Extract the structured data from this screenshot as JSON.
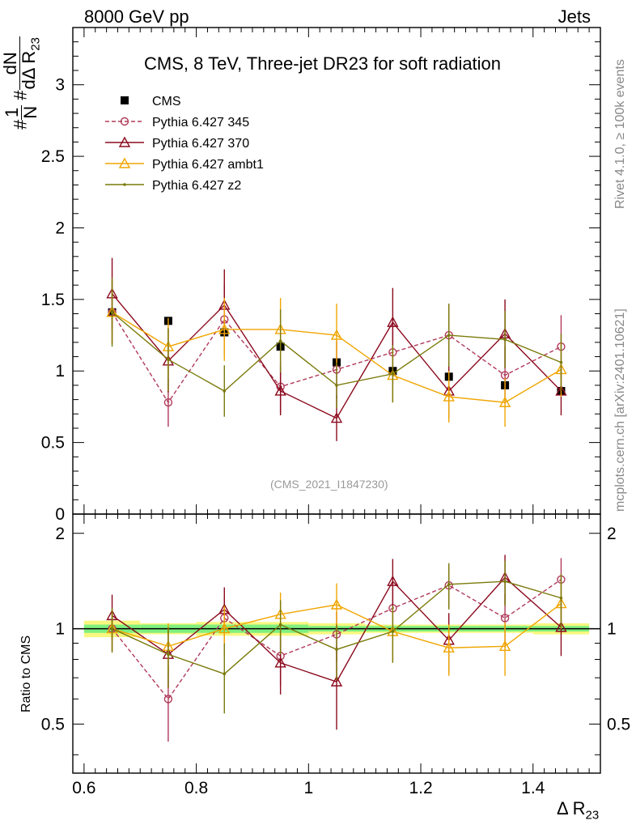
{
  "header": {
    "left": "8000 GeV pp",
    "right": "Jets"
  },
  "title": "CMS, 8 TeV, Three-jet DR23 for soft radiation",
  "analysis_id": "(CMS_2021_I1847230)",
  "side_labels": {
    "rivet": "Rivet 4.1.0, ≥ 100k events",
    "mcplots": "mcplots.cern.ch [arXiv:2401.10621]"
  },
  "axes": {
    "y_main_label": {
      "hash1": "#",
      "one": "1",
      "N": "N",
      "hash2": "#",
      "dN": "dN",
      "d": "dΔ R",
      "sub": "23"
    },
    "y_ratio_label": "Ratio to CMS",
    "x_label": "Δ R",
    "x_label_sub": "23"
  },
  "chart_data": [
    {
      "type": "scatter",
      "panel": "main",
      "xlim": [
        0.58,
        1.52
      ],
      "ylim": [
        0,
        3.4
      ],
      "xticks": [
        0.6,
        0.8,
        1,
        1.2,
        1.4
      ],
      "yticks": [
        0,
        0.5,
        1,
        1.5,
        2,
        2.5,
        3
      ],
      "ytick_labels": [
        "0",
        "0.5",
        "1",
        "1.5",
        "2",
        "2.5",
        "3"
      ],
      "x": [
        0.65,
        0.75,
        0.85,
        0.95,
        1.05,
        1.15,
        1.25,
        1.35,
        1.45
      ],
      "series": [
        {
          "name": "CMS",
          "color": "#000000",
          "marker": "square",
          "line": "none",
          "values": [
            1.41,
            1.35,
            1.27,
            1.17,
            1.06,
            1.0,
            0.96,
            0.9,
            0.86
          ],
          "errors": [
            0.03,
            0.03,
            0.03,
            0.03,
            0.03,
            0.03,
            0.03,
            0.03,
            0.03
          ]
        },
        {
          "name": "Pythia 6.427 345",
          "color": "#b03a5a",
          "marker": "circle-open",
          "line": "dashed",
          "values": [
            1.41,
            0.78,
            1.36,
            0.89,
            1.01,
            1.13,
            1.25,
            0.97,
            1.17
          ],
          "errors": [
            0.22,
            0.17,
            0.25,
            0.18,
            0.2,
            0.22,
            0.22,
            0.2,
            0.22
          ]
        },
        {
          "name": "Pythia 6.427 370",
          "color": "#8b0a1e",
          "marker": "triangle-open",
          "line": "solid",
          "values": [
            1.54,
            1.07,
            1.46,
            0.86,
            0.67,
            1.34,
            0.86,
            1.26,
            0.86
          ],
          "errors": [
            0.25,
            0.22,
            0.25,
            0.17,
            0.16,
            0.24,
            0.19,
            0.24,
            0.17
          ]
        },
        {
          "name": "Pythia 6.427 ambt1",
          "color": "#f0a500",
          "marker": "triangle-open",
          "line": "solid",
          "values": [
            1.41,
            1.17,
            1.29,
            1.29,
            1.25,
            0.97,
            0.82,
            0.78,
            1.01
          ],
          "errors": [
            0.22,
            0.2,
            0.22,
            0.22,
            0.22,
            0.19,
            0.18,
            0.17,
            0.19
          ]
        },
        {
          "name": "Pythia 6.427 z2",
          "color": "#7a7a0a",
          "marker": "dot",
          "line": "solid",
          "values": [
            1.41,
            1.08,
            0.86,
            1.21,
            0.9,
            0.98,
            1.25,
            1.22,
            1.06
          ],
          "errors": [
            0.24,
            0.22,
            0.18,
            0.22,
            0.16,
            0.2,
            0.22,
            0.2,
            0.2
          ]
        }
      ]
    },
    {
      "type": "scatter",
      "panel": "ratio",
      "ylabel": "Ratio to CMS",
      "xlim": [
        0.58,
        1.52
      ],
      "ylim": [
        0.35,
        2.3
      ],
      "yticks": [
        0.5,
        1,
        2
      ],
      "ytick_labels": [
        "0.5",
        "1",
        "2"
      ],
      "x": [
        0.65,
        0.75,
        0.85,
        0.95,
        1.05,
        1.15,
        1.25,
        1.35,
        1.45
      ],
      "band_inner_color": "#7ff07f",
      "band_outer_color": "#f7f77f",
      "band_inner": [
        0.03,
        0.03,
        0.03,
        0.03,
        0.02,
        0.02,
        0.02,
        0.02,
        0.02
      ],
      "band_outer": [
        0.06,
        0.04,
        0.05,
        0.05,
        0.04,
        0.03,
        0.03,
        0.03,
        0.04
      ],
      "series": [
        {
          "name": "Pythia 6.427 345",
          "color": "#b03a5a",
          "marker": "circle-open",
          "line": "dashed",
          "values": [
            1.0,
            0.6,
            1.08,
            0.82,
            0.96,
            1.16,
            1.37,
            1.08,
            1.43
          ],
          "errors": [
            0.15,
            0.16,
            0.17,
            0.16,
            0.17,
            0.19,
            0.21,
            0.21,
            0.24
          ]
        },
        {
          "name": "Pythia 6.427 370",
          "color": "#8b0a1e",
          "marker": "triangle-open",
          "line": "solid",
          "values": [
            1.1,
            0.83,
            1.15,
            0.78,
            0.68,
            1.41,
            0.92,
            1.45,
            1.01
          ],
          "errors": [
            0.18,
            0.18,
            0.2,
            0.16,
            0.2,
            0.25,
            0.2,
            0.26,
            0.19
          ]
        },
        {
          "name": "Pythia 6.427 ambt1",
          "color": "#f0a500",
          "marker": "triangle-open",
          "line": "solid",
          "values": [
            1.0,
            0.88,
            1.0,
            1.11,
            1.19,
            0.98,
            0.87,
            0.88,
            1.2
          ],
          "errors": [
            0.15,
            0.16,
            0.18,
            0.19,
            0.2,
            0.19,
            0.16,
            0.17,
            0.2
          ]
        },
        {
          "name": "Pythia 6.427 z2",
          "color": "#7a7a0a",
          "marker": "dot",
          "line": "solid",
          "values": [
            1.0,
            0.83,
            0.72,
            1.03,
            0.86,
            0.98,
            1.38,
            1.41,
            1.25
          ],
          "errors": [
            0.16,
            0.18,
            0.18,
            0.2,
            0.17,
            0.2,
            0.23,
            0.23,
            0.24
          ]
        }
      ]
    }
  ]
}
